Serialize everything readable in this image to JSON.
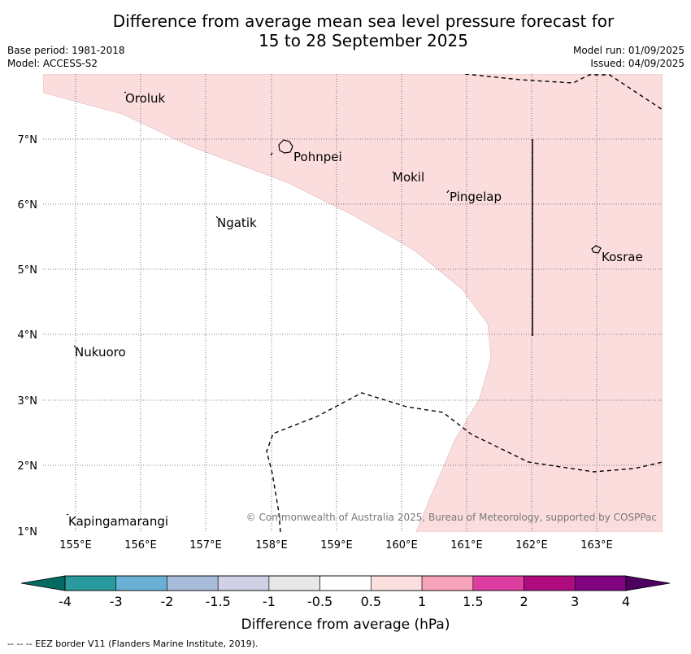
{
  "title": {
    "line1": "Difference from average mean sea level pressure forecast for",
    "line2": "15 to 28 September 2025"
  },
  "meta": {
    "base_period": "Base period: 1981-2018",
    "model": "Model: ACCESS-S2",
    "model_run": "Model run: 01/09/2025",
    "issued": "Issued: 04/09/2025"
  },
  "map": {
    "lon_ticks": [
      "155°E",
      "156°E",
      "157°E",
      "158°E",
      "159°E",
      "160°E",
      "161°E",
      "162°E",
      "163°E"
    ],
    "lat_ticks": [
      "7°N",
      "6°N",
      "5°N",
      "4°N",
      "3°N",
      "2°N",
      "1°N"
    ],
    "places": [
      {
        "name": "Oroluk"
      },
      {
        "name": "Pohnpei"
      },
      {
        "name": "Mokil"
      },
      {
        "name": "Pingelap"
      },
      {
        "name": "Ngatik"
      },
      {
        "name": "Kosrae"
      },
      {
        "name": "Nukuoro"
      },
      {
        "name": "Kapingamarangi"
      }
    ],
    "copyright": "© Commonwealth of Australia 2025, Bureau of Meteorology, supported by COSPPac",
    "shading_color": "#fcdddd"
  },
  "colorbar": {
    "labels": [
      "-4",
      "-3",
      "-2",
      "-1.5",
      "-1",
      "-0.5",
      "0.5",
      "1",
      "1.5",
      "2",
      "3",
      "4"
    ],
    "colors": [
      "#2a9a9c",
      "#6aafd4",
      "#a8bcdc",
      "#d0d0e6",
      "#e8e8e8",
      "#ffffff",
      "#fce0e0",
      "#f7a4bb",
      "#dc3fa0",
      "#b00c80",
      "#800480"
    ],
    "low_extend_color": "#036b5f",
    "high_extend_color": "#4d0060",
    "label": "Difference from average (hPa)"
  },
  "footer": "--  --  -- EEZ border V11 (Flanders Marine Institute, 2019)."
}
